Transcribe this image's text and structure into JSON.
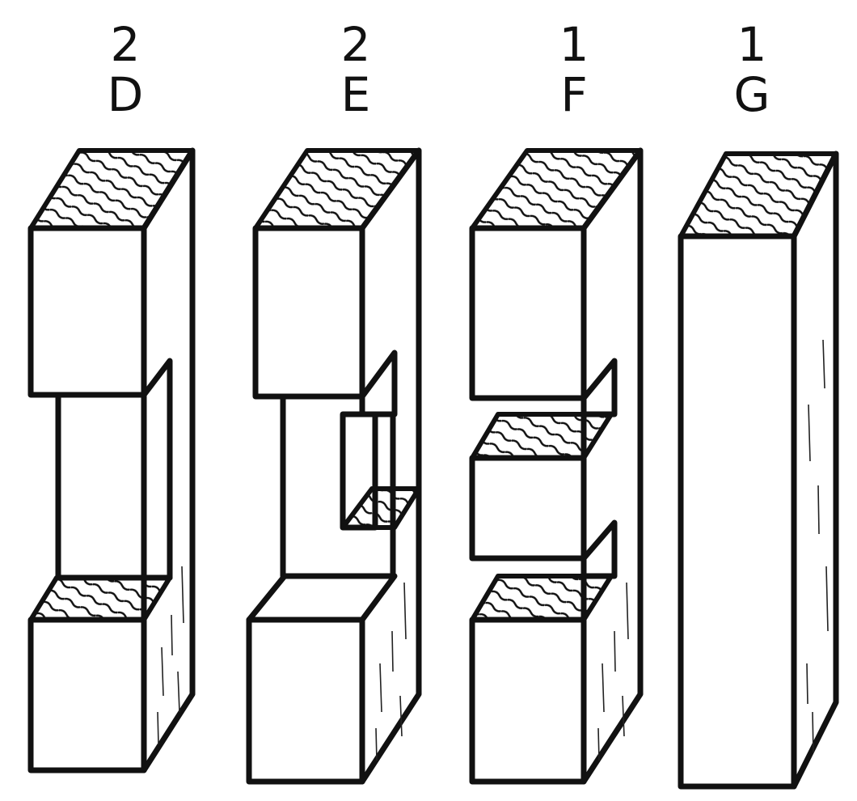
{
  "pieces": [
    {
      "count": "2",
      "letter": "D"
    },
    {
      "count": "2",
      "letter": "E"
    },
    {
      "count": "1",
      "letter": "F"
    },
    {
      "count": "1",
      "letter": "G"
    }
  ]
}
